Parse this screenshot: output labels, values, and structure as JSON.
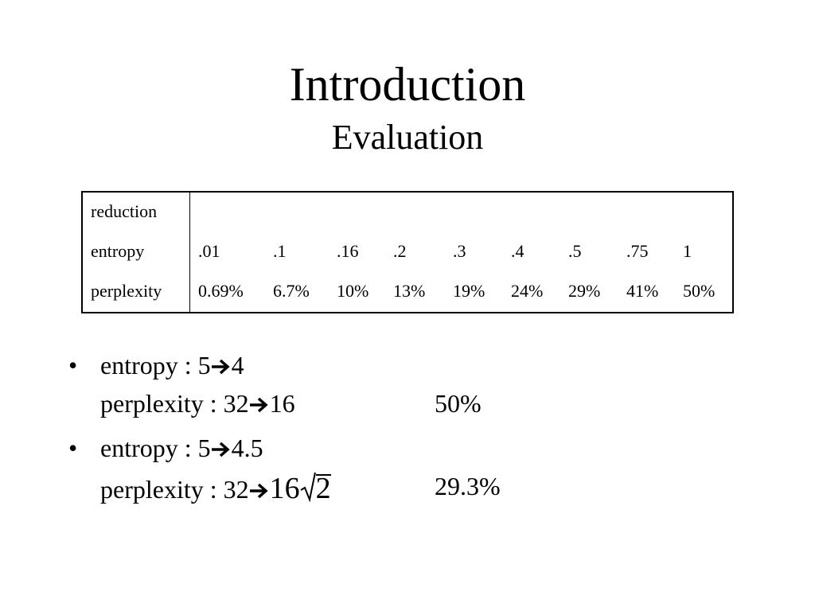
{
  "title": "Introduction",
  "subtitle": "Evaluation",
  "table": {
    "rows": [
      [
        "reduction"
      ],
      [
        "entropy",
        ".01",
        ".1",
        ".16",
        ".2",
        ".3",
        ".4",
        ".5",
        ".75",
        "1"
      ],
      [
        "perplexity",
        "0.69%",
        "6.7%",
        "10%",
        "13%",
        "19%",
        "24%",
        "29%",
        "41%",
        "50%"
      ]
    ]
  },
  "bullets": [
    {
      "line1": [
        "entropy : 5",
        "4"
      ],
      "line2": [
        "perplexity : 32",
        "16"
      ],
      "result": "50%"
    },
    {
      "line1": [
        "entropy : 5",
        "4.5"
      ],
      "line2": [
        "perplexity : 32",
        "16",
        "2"
      ],
      "result": "29.3%"
    }
  ]
}
